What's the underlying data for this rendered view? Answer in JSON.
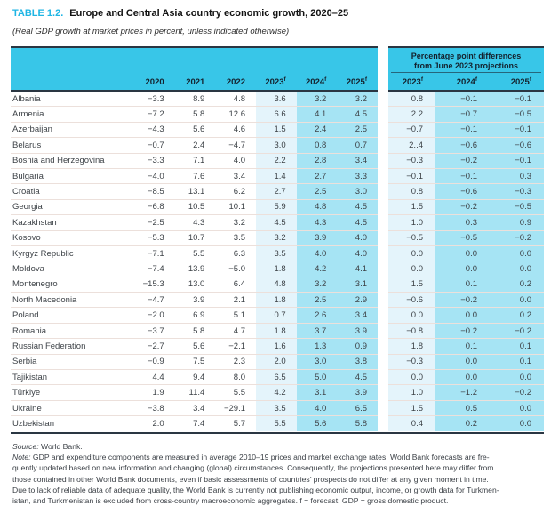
{
  "header": {
    "table_label": "TABLE 1.2.",
    "title": "Europe and Central Asia country economic growth, 2020–25",
    "subtitle": "(Real GDP growth at market prices in percent, unless indicated otherwise)"
  },
  "main_table": {
    "year_columns": [
      {
        "text": "2020",
        "sup": ""
      },
      {
        "text": "2021",
        "sup": ""
      },
      {
        "text": "2022",
        "sup": ""
      },
      {
        "text": "2023",
        "sup": "f"
      },
      {
        "text": "2024",
        "sup": "f"
      },
      {
        "text": "2025",
        "sup": "f"
      }
    ]
  },
  "diff_table": {
    "title_line1": "Percentage point differences",
    "title_line2": "from June 2023 projections",
    "year_columns": [
      {
        "text": "2023",
        "sup": "f"
      },
      {
        "text": "2024",
        "sup": "f"
      },
      {
        "text": "2025",
        "sup": "f"
      }
    ]
  },
  "rows": [
    {
      "country": "Albania",
      "growth": [
        "−3.3",
        "8.9",
        "4.8",
        "3.6",
        "3.2",
        "3.2"
      ],
      "diff": [
        "0.8",
        "−0.1",
        "−0.1"
      ]
    },
    {
      "country": "Armenia",
      "growth": [
        "−7.2",
        "5.8",
        "12.6",
        "6.6",
        "4.1",
        "4.5"
      ],
      "diff": [
        "2.2",
        "−0.7",
        "−0.5"
      ]
    },
    {
      "country": "Azerbaijan",
      "growth": [
        "−4.3",
        "5.6",
        "4.6",
        "1.5",
        "2.4",
        "2.5"
      ],
      "diff": [
        "−0.7",
        "−0.1",
        "−0.1"
      ]
    },
    {
      "country": "Belarus",
      "growth": [
        "−0.7",
        "2.4",
        "−4.7",
        "3.0",
        "0.8",
        "0.7"
      ],
      "diff": [
        "2..4",
        "−0.6",
        "−0.6"
      ]
    },
    {
      "country": "Bosnia and Herzegovina",
      "growth": [
        "−3.3",
        "7.1",
        "4.0",
        "2.2",
        "2.8",
        "3.4"
      ],
      "diff": [
        "−0.3",
        "−0.2",
        "−0.1"
      ]
    },
    {
      "country": "Bulgaria",
      "growth": [
        "−4.0",
        "7.6",
        "3.4",
        "1.4",
        "2.7",
        "3.3"
      ],
      "diff": [
        "−0.1",
        "−0.1",
        "0.3"
      ]
    },
    {
      "country": "Croatia",
      "growth": [
        "−8.5",
        "13.1",
        "6.2",
        "2.7",
        "2.5",
        "3.0"
      ],
      "diff": [
        "0.8",
        "−0.6",
        "−0.3"
      ]
    },
    {
      "country": "Georgia",
      "growth": [
        "−6.8",
        "10.5",
        "10.1",
        "5.9",
        "4.8",
        "4.5"
      ],
      "diff": [
        "1.5",
        "−0.2",
        "−0.5"
      ]
    },
    {
      "country": "Kazakhstan",
      "growth": [
        "−2.5",
        "4.3",
        "3.2",
        "4.5",
        "4.3",
        "4.5"
      ],
      "diff": [
        "1.0",
        "0.3",
        "0.9"
      ]
    },
    {
      "country": "Kosovo",
      "growth": [
        "−5.3",
        "10.7",
        "3.5",
        "3.2",
        "3.9",
        "4.0"
      ],
      "diff": [
        "−0.5",
        "−0.5",
        "−0.2"
      ]
    },
    {
      "country": "Kyrgyz Republic",
      "growth": [
        "−7.1",
        "5.5",
        "6.3",
        "3.5",
        "4.0",
        "4.0"
      ],
      "diff": [
        "0.0",
        "0.0",
        "0.0"
      ]
    },
    {
      "country": "Moldova",
      "growth": [
        "−7.4",
        "13.9",
        "−5.0",
        "1.8",
        "4.2",
        "4.1"
      ],
      "diff": [
        "0.0",
        "0.0",
        "0.0"
      ]
    },
    {
      "country": "Montenegro",
      "growth": [
        "−15.3",
        "13.0",
        "6.4",
        "4.8",
        "3.2",
        "3.1"
      ],
      "diff": [
        "1.5",
        "0.1",
        "0.2"
      ]
    },
    {
      "country": "North Macedonia",
      "growth": [
        "−4.7",
        "3.9",
        "2.1",
        "1.8",
        "2.5",
        "2.9"
      ],
      "diff": [
        "−0.6",
        "−0.2",
        "0.0"
      ]
    },
    {
      "country": "Poland",
      "growth": [
        "−2.0",
        "6.9",
        "5.1",
        "0.7",
        "2.6",
        "3.4"
      ],
      "diff": [
        "0.0",
        "0.0",
        "0.2"
      ]
    },
    {
      "country": "Romania",
      "growth": [
        "−3.7",
        "5.8",
        "4.7",
        "1.8",
        "3.7",
        "3.9"
      ],
      "diff": [
        "−0.8",
        "−0.2",
        "−0.2"
      ]
    },
    {
      "country": "Russian Federation",
      "growth": [
        "−2.7",
        "5.6",
        "−2.1",
        "1.6",
        "1.3",
        "0.9"
      ],
      "diff": [
        "1.8",
        "0.1",
        "0.1"
      ]
    },
    {
      "country": "Serbia",
      "growth": [
        "−0.9",
        "7.5",
        "2.3",
        "2.0",
        "3.0",
        "3.8"
      ],
      "diff": [
        "−0.3",
        "0.0",
        "0.1"
      ]
    },
    {
      "country": "Tajikistan",
      "growth": [
        "4.4",
        "9.4",
        "8.0",
        "6.5",
        "5.0",
        "4.5"
      ],
      "diff": [
        "0.0",
        "0.0",
        "0.0"
      ]
    },
    {
      "country": "Türkiye",
      "growth": [
        "1.9",
        "11.4",
        "5.5",
        "4.2",
        "3.1",
        "3.9"
      ],
      "diff": [
        "1.0",
        "−1.2",
        "−0.2"
      ]
    },
    {
      "country": "Ukraine",
      "growth": [
        "−3.8",
        "3.4",
        "−29.1",
        "3.5",
        "4.0",
        "6.5"
      ],
      "diff": [
        "1.5",
        "0.5",
        "0.0"
      ]
    },
    {
      "country": "Uzbekistan",
      "growth": [
        "2.0",
        "7.4",
        "5.7",
        "5.5",
        "5.6",
        "5.8"
      ],
      "diff": [
        "0.4",
        "0.2",
        "0.0"
      ]
    }
  ],
  "footer": {
    "source_label": "Source:",
    "source_text": " World Bank.",
    "note_label": "Note:",
    "note_lines": [
      " GDP and expenditure components are measured in average 2010–19 prices and market exchange rates. World Bank forecasts are fre-",
      "quently updated based on new information and changing (global) circumstances. Consequently, the projections presented here may differ from",
      "those contained in other World Bank documents, even if basic assessments of countries’ prospects do not differ at any given moment in time.",
      "Due to lack of reliable data of adequate quality, the World Bank is currently not publishing economic output, income, or growth data for Turkmen-",
      "istan, and Turkmenistan is excluded from cross-country macroeconomic aggregates. f = forecast; GDP = gross domestic product."
    ]
  },
  "colors": {
    "accent_cyan_header": "#38c6e8",
    "band_light_blue": "#e4f4fb",
    "band_medium_cyan": "#a6e4f4",
    "rule_dark_navy": "#2a3642",
    "title_accent": "#1fb5e4",
    "row_separator": "#ece0db",
    "body_text": "#3d4247"
  }
}
